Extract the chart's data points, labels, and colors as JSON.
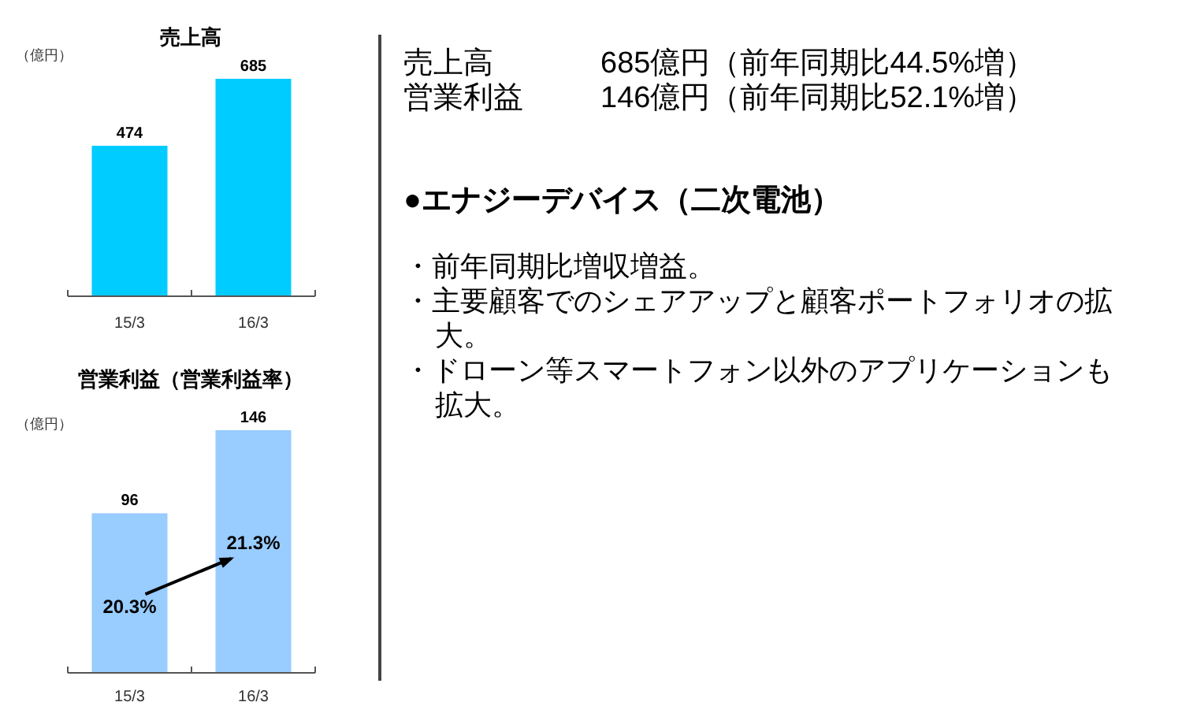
{
  "chart_data": [
    {
      "type": "bar",
      "title": "売上高",
      "ylabel": "（億円）",
      "categories": [
        "15/3",
        "16/3"
      ],
      "values": [
        474,
        685
      ],
      "color": "#00ccff",
      "data_labels": true
    },
    {
      "type": "bar",
      "title": "営業利益（営業利益率）",
      "ylabel": "（億円）",
      "categories": [
        "15/3",
        "16/3"
      ],
      "values": [
        96,
        146
      ],
      "color": "#99ccff",
      "data_labels": true,
      "annotations": [
        "20.3%",
        "21.3%"
      ]
    },
    {
      "type": "other",
      "annotations": [
        "売上高",
        "685億円（前年同期比44.5%増）",
        "営業利益",
        "146億円（前年同期比52.1%増）",
        "●エナジーデバイス（二次電池）",
        "・前年同期比増収増益。",
        "・主要顧客でのシェアアップと顧客ポートフォリオの拡大。",
        "・ドローン等スマートフォン以外のアプリケーションも拡大。"
      ]
    }
  ]
}
